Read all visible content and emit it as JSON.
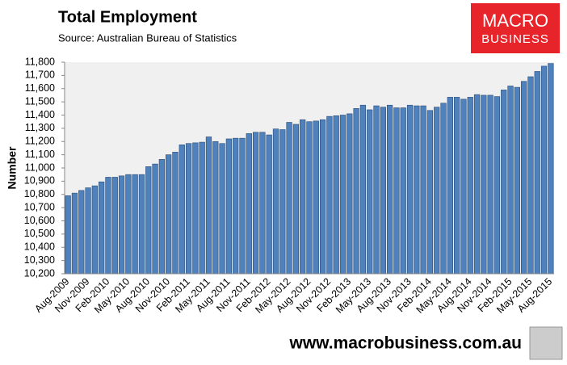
{
  "chart_data": {
    "type": "bar",
    "title": "Total Employment",
    "subtitle": "Source: Australian Bureau of Statistics",
    "y_label": "Number",
    "logo": [
      "MACRO",
      "BUSINESS"
    ],
    "footer": "www.macrobusiness.com.au",
    "color": "#4f81bd",
    "grid": false,
    "categories": [
      "Aug-2009",
      null,
      null,
      "Nov-2009",
      null,
      null,
      "Feb-2010",
      null,
      null,
      "May-2010",
      null,
      null,
      "Aug-2010",
      null,
      null,
      "Nov-2010",
      null,
      null,
      "Feb-2011",
      null,
      null,
      "May-2011",
      null,
      null,
      "Aug-2011",
      null,
      null,
      "Nov-2011",
      null,
      null,
      "Feb-2012",
      null,
      null,
      "May-2012",
      null,
      null,
      "Aug-2012",
      null,
      null,
      "Nov-2012",
      null,
      null,
      "Feb-2013",
      null,
      null,
      "May-2013",
      null,
      null,
      "Aug-2013",
      null,
      null,
      "Nov-2013",
      null,
      null,
      "Feb-2014",
      null,
      null,
      "May-2014",
      null,
      null,
      "Aug-2014",
      null,
      null,
      "Nov-2014",
      null,
      null,
      "Feb-2015",
      null,
      null,
      "May-2015",
      null,
      null,
      "Aug-2015"
    ],
    "values": [
      10790,
      10810,
      10830,
      10850,
      10865,
      10895,
      10930,
      10930,
      10940,
      10950,
      10950,
      10950,
      11010,
      11030,
      11065,
      11100,
      11120,
      11175,
      11185,
      11190,
      11195,
      11235,
      11200,
      11185,
      11220,
      11225,
      11225,
      11260,
      11270,
      11270,
      11250,
      11295,
      11290,
      11345,
      11330,
      11365,
      11350,
      11355,
      11365,
      11390,
      11395,
      11400,
      11410,
      11450,
      11475,
      11440,
      11470,
      11460,
      11475,
      11455,
      11455,
      11475,
      11470,
      11470,
      11435,
      11460,
      11490,
      11535,
      11535,
      11520,
      11535,
      11555,
      11550,
      11550,
      11540,
      11590,
      11620,
      11610,
      11655,
      11690,
      11730,
      11770,
      11790
    ],
    "ylim": [
      10200,
      11800
    ],
    "yticks": [
      {
        "value": 10200,
        "label": "10,200"
      },
      {
        "value": 10300,
        "label": "10,300"
      },
      {
        "value": 10400,
        "label": "10,400"
      },
      {
        "value": 10500,
        "label": "10,500"
      },
      {
        "value": 10600,
        "label": "10,600"
      },
      {
        "value": 10700,
        "label": "10,700"
      },
      {
        "value": 10800,
        "label": "10,800"
      },
      {
        "value": 10900,
        "label": "10,900"
      },
      {
        "value": 11000,
        "label": "11,000"
      },
      {
        "value": 11100,
        "label": "11,100"
      },
      {
        "value": 11200,
        "label": "11,200"
      },
      {
        "value": 11300,
        "label": "11,300"
      },
      {
        "value": 11400,
        "label": "11,400"
      },
      {
        "value": 11500,
        "label": "11,500"
      },
      {
        "value": 11600,
        "label": "11,600"
      },
      {
        "value": 11700,
        "label": "11,700"
      },
      {
        "value": 11800,
        "label": "11,800"
      }
    ]
  }
}
